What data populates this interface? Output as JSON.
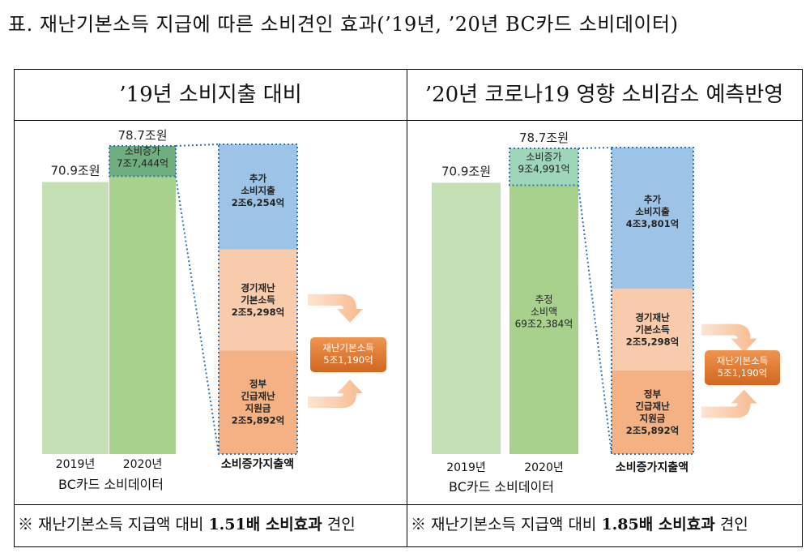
{
  "page": {
    "title": "표. 재난기본소득 지급에 따른 소비견인 효과(’19년, ’20년 BC카드 소비데이터)"
  },
  "chart_data": [
    {
      "type": "bar",
      "title": "’19년 소비지출 대비",
      "categories": [
        "2019년",
        "2020년"
      ],
      "totals": [
        {
          "value": 70.9,
          "label": "70.9조원"
        },
        {
          "value": 78.7,
          "label": "78.7조원"
        }
      ],
      "segments_2020": [
        {
          "name": "base",
          "value": 70.9,
          "label": "",
          "color": "#a9d18e"
        },
        {
          "name": "소비증가",
          "value": 7.7444,
          "label": "소비증가\n7조7,444억",
          "color": "#70ad7f"
        }
      ],
      "color_2019": "#c5e0b4",
      "breakdown": {
        "caption": "소비증가지출액",
        "segments": [
          {
            "value": 2.6254,
            "label": "추가\n소비지출\n2조6,254억",
            "color": "#9dc3e6"
          },
          {
            "value": 2.5298,
            "label": "경기재난\n기본소득\n2조5,298억",
            "color": "#f8cbad"
          },
          {
            "value": 2.5892,
            "label": "정부\n긴급재난\n지원금\n2조5,892억",
            "color": "#f4b183"
          }
        ]
      },
      "result": {
        "label": "재난기본소득\n5조1,190억",
        "color": "#e2782d"
      },
      "source": "BC카드 소비데이터",
      "note": {
        "prefix": "※ 재난기본소득 지급액 대비 ",
        "bold": "1.51배 소비효과",
        "suffix": " 견인"
      }
    },
    {
      "type": "bar",
      "title": "’20년 코로나19 영향 소비감소 예측반영",
      "categories": [
        "2019년",
        "2020년"
      ],
      "totals": [
        {
          "value": 70.9,
          "label": "70.9조원"
        },
        {
          "value": 78.7,
          "label": "78.7조원"
        }
      ],
      "segments_2020": [
        {
          "name": "추정 소비액",
          "value": 69.2384,
          "label": "추정\n소비액\n69조2,384억",
          "color": "#a9d18e"
        },
        {
          "name": "소비증가",
          "value": 9.4991,
          "label": "소비증가\n9조4,991억",
          "color": "#9fd5b8"
        }
      ],
      "color_2019": "#c5e0b4",
      "breakdown": {
        "caption": "소비증가지출액",
        "segments": [
          {
            "value": 4.3801,
            "label": "추가\n소비지출\n4조3,801억",
            "color": "#9dc3e6"
          },
          {
            "value": 2.5298,
            "label": "경기재난\n기본소득\n2조5,298억",
            "color": "#f8cbad"
          },
          {
            "value": 2.5892,
            "label": "정부\n긴급재난\n지원금\n2조5,892억",
            "color": "#f4b183"
          }
        ]
      },
      "result": {
        "label": "재난기본소득\n5조1,190억",
        "color": "#e2782d"
      },
      "source": "BC카드 소비데이터",
      "note": {
        "prefix": "※ 재난기본소득 지급액 대비 ",
        "bold": "1.85배 소비효과",
        "suffix": " 견인"
      }
    }
  ]
}
